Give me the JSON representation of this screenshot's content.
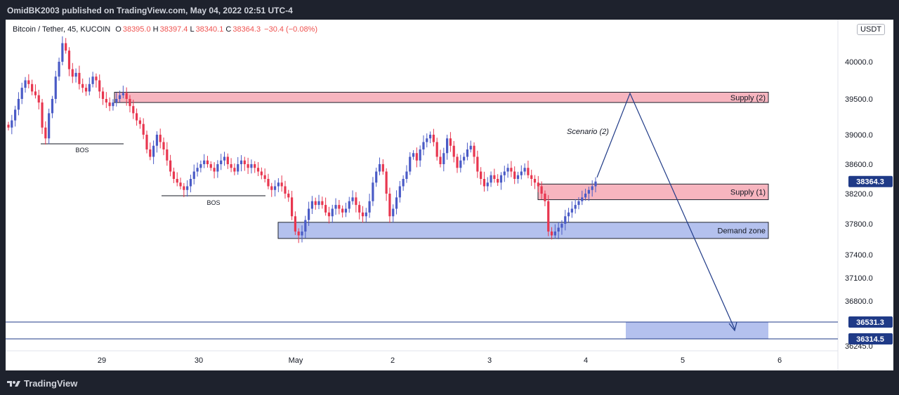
{
  "header": {
    "publish_text": "OmidBK2003 published on TradingView.com, May 04, 2022 02:51 UTC-4"
  },
  "legend": {
    "symbol": "Bitcoin / Tether, 45, KUCOIN",
    "open_label": "O",
    "open": "38395.0",
    "high_label": "H",
    "high": "38397.4",
    "low_label": "L",
    "low": "38340.1",
    "close_label": "C",
    "close": "38364.3",
    "change": "−30.4 (−0.08%)"
  },
  "currency": "USDT",
  "brand": "TradingView",
  "colors": {
    "up": "#4a5bc6",
    "down": "#e8364f",
    "supply_fill": "#f7b5bf",
    "demand_fill": "#b4c1ee",
    "arrow": "#1f3a87"
  },
  "chart_data": {
    "type": "candlestick",
    "x_ticks": [
      "29",
      "30",
      "May",
      "2",
      "3",
      "4",
      "5",
      "6"
    ],
    "y_ticks": [
      "40000.0",
      "39500.0",
      "39000.0",
      "38600.0",
      "38200.0",
      "37800.0",
      "37400.0",
      "37100.0",
      "36800.0",
      "36245.0"
    ],
    "price_labels": [
      "38364.3",
      "36531.3",
      "36314.5"
    ],
    "zones": [
      {
        "label": "Supply (2)",
        "low": 39450,
        "high": 39590,
        "type": "supply"
      },
      {
        "label": "Supply (1)",
        "low": 38120,
        "high": 38330,
        "type": "supply"
      },
      {
        "label": "Demand zone",
        "low": 37610,
        "high": 37820,
        "type": "demand"
      }
    ],
    "target_zone": {
      "low": 36314.5,
      "high": 36531.3
    },
    "annotations": [
      "BOS",
      "BOS",
      "Scenario (2)"
    ],
    "closes": [
      39100,
      39200,
      39350,
      39500,
      39650,
      39750,
      39700,
      39600,
      39550,
      39450,
      39100,
      38950,
      39300,
      39500,
      39800,
      40000,
      40250,
      40150,
      39900,
      39800,
      39850,
      39700,
      39650,
      39600,
      39700,
      39800,
      39750,
      39600,
      39500,
      39450,
      39400,
      39450,
      39500,
      39550,
      39580,
      39500,
      39400,
      39300,
      39200,
      39150,
      39000,
      38800,
      38700,
      38850,
      39000,
      38900,
      38800,
      38650,
      38500,
      38400,
      38350,
      38300,
      38250,
      38300,
      38400,
      38500,
      38550,
      38600,
      38650,
      38600,
      38550,
      38500,
      38600,
      38650,
      38700,
      38600,
      38550,
      38500,
      38600,
      38650,
      38600,
      38550,
      38600,
      38550,
      38500,
      38450,
      38400,
      38300,
      38250,
      38300,
      38350,
      38300,
      38200,
      38150,
      37900,
      37700,
      37650,
      37700,
      37850,
      38000,
      38100,
      38050,
      38100,
      38050,
      37950,
      37900,
      38000,
      38050,
      38000,
      37950,
      38000,
      38100,
      38150,
      38050,
      37950,
      37900,
      37950,
      38100,
      38350,
      38500,
      38600,
      38500,
      38200,
      37900,
      38000,
      38150,
      38300,
      38400,
      38500,
      38700,
      38750,
      38650,
      38800,
      38900,
      38950,
      39000,
      38900,
      38700,
      38600,
      38750,
      38950,
      38850,
      38700,
      38550,
      38650,
      38700,
      38800,
      38850,
      38700,
      38500,
      38400,
      38300,
      38350,
      38450,
      38400,
      38350,
      38450,
      38500,
      38550,
      38500,
      38400,
      38450,
      38500,
      38550,
      38450,
      38400,
      38350,
      38300,
      38200,
      38100,
      37700,
      37650,
      37700,
      37750,
      37800,
      37900,
      37950,
      38000,
      38050,
      38100,
      38150,
      38200,
      38250,
      38300,
      38364.3
    ]
  }
}
